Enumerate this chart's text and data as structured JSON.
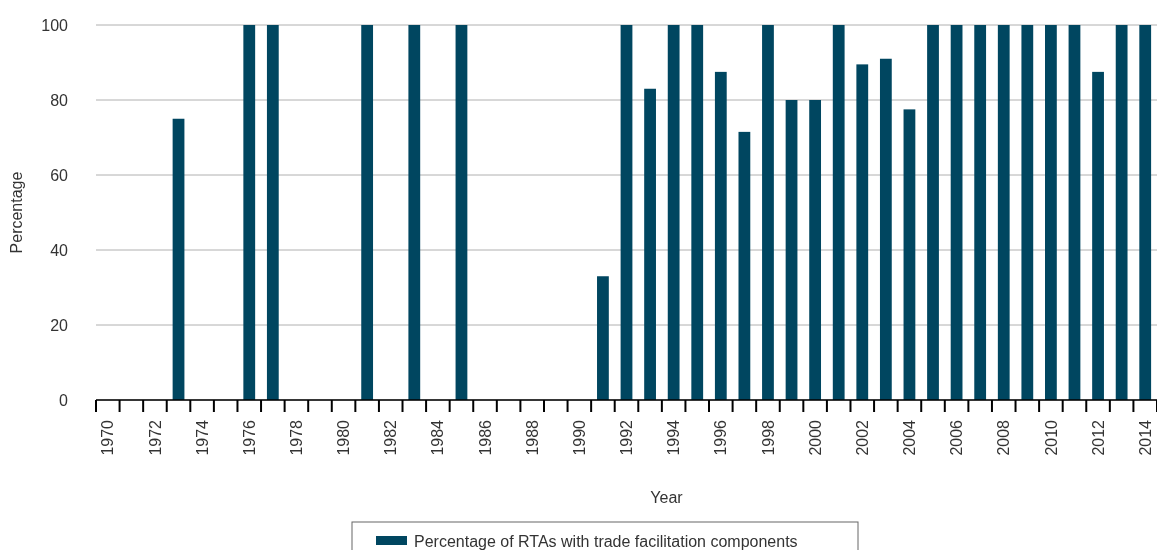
{
  "chart_data": {
    "type": "bar",
    "xlabel": "Year",
    "ylabel": "Percentage",
    "categories": [
      "1970",
      null,
      "1972",
      null,
      "1974",
      null,
      "1976",
      null,
      "1978",
      null,
      "1980",
      null,
      "1982",
      null,
      "1984",
      null,
      "1986",
      null,
      "1988",
      null,
      "1990",
      null,
      "1992",
      null,
      "1994",
      null,
      "1996",
      null,
      "1998",
      null,
      "2000",
      null,
      "2002",
      null,
      "2004",
      null,
      "2006",
      null,
      "2008",
      null,
      "2010",
      null,
      "2012",
      null,
      "2014"
    ],
    "series": [
      {
        "name": "Percentage of RTAs with trade facilitation components",
        "color": "#004660",
        "values": [
          0,
          0,
          0,
          75,
          0,
          0,
          100,
          100,
          0,
          0,
          0,
          100,
          0,
          100,
          0,
          100,
          0,
          0,
          0,
          0,
          0,
          33,
          100,
          83,
          100,
          100,
          87.5,
          71.5,
          100,
          80,
          80,
          100,
          89.5,
          91,
          77.5,
          100,
          100,
          100,
          100,
          100,
          100,
          100,
          87.5,
          100,
          100
        ]
      }
    ],
    "ylim": [
      0,
      100
    ],
    "yticks": [
      0,
      20,
      40,
      60,
      80,
      100
    ],
    "grid": "y",
    "legend": "bottom"
  }
}
